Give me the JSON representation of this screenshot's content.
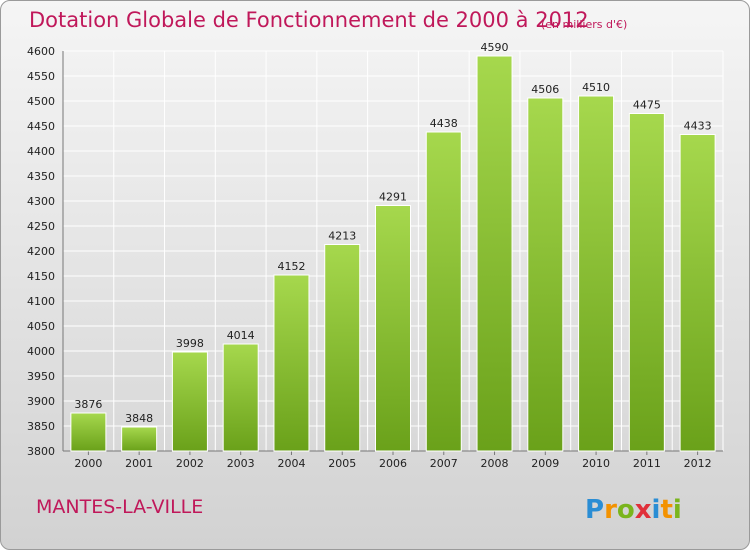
{
  "header": {
    "title": "Dotation Globale de Fonctionnement de 2000 à 2012",
    "unit_note": "(en milliers d'€)"
  },
  "footer": {
    "commune": "MANTES-LA-VILLE",
    "logo_text": "Proxiti"
  },
  "colors": {
    "title": "#c0185a",
    "bar_top": "#a6d84d",
    "bar_bottom": "#6aa11a",
    "grid": "#ffffff",
    "logo_blue": "#2a8dd4",
    "logo_orange": "#f39200",
    "logo_green": "#7ab51d",
    "logo_red": "#e0303a"
  },
  "chart_data": {
    "type": "bar",
    "title": "Dotation Globale de Fonctionnement de 2000 à 2012",
    "subtitle": "(en milliers d'€)",
    "xlabel": "",
    "ylabel": "",
    "categories": [
      "2000",
      "2001",
      "2002",
      "2003",
      "2004",
      "2005",
      "2006",
      "2007",
      "2008",
      "2009",
      "2010",
      "2011",
      "2012"
    ],
    "values": [
      3876,
      3848,
      3998,
      4014,
      4152,
      4213,
      4291,
      4438,
      4590,
      4506,
      4510,
      4475,
      4433
    ],
    "ylim": [
      3800,
      4600
    ],
    "yticks": [
      3800,
      3850,
      3900,
      3950,
      4000,
      4050,
      4100,
      4150,
      4200,
      4250,
      4300,
      4350,
      4400,
      4450,
      4500,
      4550,
      4600
    ],
    "grid": true,
    "data_labels": true
  }
}
